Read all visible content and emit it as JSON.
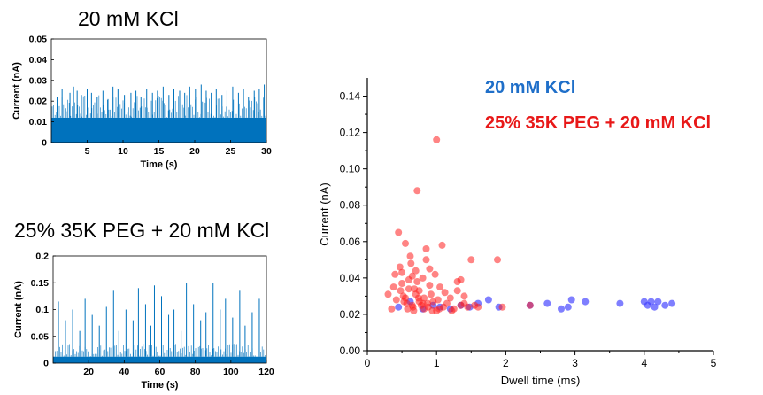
{
  "colors": {
    "trace_blue": "#0072bd",
    "scatter_blue": "#3b3bff",
    "scatter_red": "#ff1f1f",
    "legend_blue": "#1f6fc9",
    "legend_red": "#e81818"
  },
  "chart_data": [
    {
      "type": "line",
      "title": "20 mM KCl",
      "xlabel": "Time (s)",
      "ylabel": "Current (nA)",
      "xlim": [
        0,
        30
      ],
      "ylim": [
        0,
        0.05
      ],
      "xticks": [
        "5",
        "10",
        "15",
        "20",
        "25",
        "30"
      ],
      "yticks": [
        "0",
        "0.01",
        "0.02",
        "0.03",
        "0.04",
        "0.05"
      ],
      "baseline": 0.012,
      "spike_times": [
        0.8,
        1.5,
        2.6,
        3.1,
        3.6,
        4.2,
        5.0,
        5.6,
        6.4,
        7.2,
        7.9,
        8.6,
        9.3,
        10.2,
        11.1,
        11.8,
        12.5,
        13.3,
        14.1,
        14.8,
        15.6,
        16.4,
        17.1,
        17.9,
        18.6,
        19.3,
        20.1,
        20.9,
        21.6,
        22.3,
        23.0,
        23.8,
        24.5,
        25.3,
        26.1,
        26.8,
        27.5,
        28.3,
        29.0,
        29.7
      ],
      "spike_values": [
        0.022,
        0.026,
        0.024,
        0.027,
        0.025,
        0.023,
        0.026,
        0.024,
        0.022,
        0.025,
        0.021,
        0.027,
        0.026,
        0.023,
        0.024,
        0.025,
        0.022,
        0.026,
        0.024,
        0.025,
        0.027,
        0.023,
        0.026,
        0.025,
        0.024,
        0.027,
        0.026,
        0.028,
        0.025,
        0.024,
        0.026,
        0.023,
        0.025,
        0.027,
        0.024,
        0.026,
        0.022,
        0.025,
        0.026,
        0.028
      ]
    },
    {
      "type": "line",
      "title": "25% 35K PEG + 20 mM KCl",
      "xlabel": "Time (s)",
      "ylabel": "Current (nA)",
      "xlim": [
        0,
        120
      ],
      "ylim": [
        0,
        0.2
      ],
      "xticks": [
        "20",
        "40",
        "60",
        "80",
        "100",
        "120"
      ],
      "yticks": [
        "0",
        "0.05",
        "0.1",
        "0.15",
        "0.2"
      ],
      "baseline": 0.012,
      "spike_times": [
        3,
        7,
        11,
        15,
        18,
        22,
        26,
        30,
        34,
        37,
        41,
        45,
        48,
        52,
        55,
        57,
        61,
        65,
        68,
        72,
        75,
        79,
        83,
        86,
        90,
        94,
        97,
        101,
        105,
        108,
        112,
        116
      ],
      "spike_values": [
        0.115,
        0.08,
        0.1,
        0.06,
        0.12,
        0.09,
        0.07,
        0.105,
        0.135,
        0.06,
        0.1,
        0.08,
        0.14,
        0.11,
        0.07,
        0.145,
        0.125,
        0.09,
        0.1,
        0.06,
        0.15,
        0.11,
        0.08,
        0.095,
        0.15,
        0.1,
        0.12,
        0.085,
        0.135,
        0.07,
        0.095,
        0.12
      ]
    },
    {
      "type": "scatter",
      "title": "",
      "xlabel": "Dwell time (ms)",
      "ylabel": "Current (nA)",
      "xlim": [
        0,
        5
      ],
      "ylim": [
        0,
        0.15
      ],
      "xticks": [
        "0",
        "1",
        "2",
        "3",
        "4",
        "5"
      ],
      "yticks": [
        "0.00",
        "0.02",
        "0.04",
        "0.06",
        "0.08",
        "0.10",
        "0.12",
        "0.14"
      ],
      "series": [
        {
          "name": "20 mM KCl",
          "color": "#3b3bff",
          "x": [
            0.45,
            0.62,
            0.8,
            0.95,
            1.05,
            1.2,
            1.35,
            1.48,
            1.6,
            1.75,
            1.9,
            2.35,
            2.6,
            2.8,
            2.9,
            2.95,
            3.15,
            3.65,
            4.0,
            4.05,
            4.1,
            4.15,
            4.2,
            4.3,
            4.4
          ],
          "y": [
            0.024,
            0.027,
            0.023,
            0.025,
            0.024,
            0.023,
            0.025,
            0.024,
            0.026,
            0.028,
            0.024,
            0.025,
            0.026,
            0.023,
            0.024,
            0.028,
            0.027,
            0.026,
            0.027,
            0.025,
            0.027,
            0.024,
            0.027,
            0.025,
            0.026
          ]
        },
        {
          "name": "25% 35K PEG + 20 mM KCl",
          "color": "#ff1f1f",
          "x": [
            0.3,
            0.35,
            0.38,
            0.42,
            0.45,
            0.47,
            0.5,
            0.52,
            0.55,
            0.57,
            0.6,
            0.62,
            0.65,
            0.67,
            0.7,
            0.72,
            0.72,
            0.75,
            0.78,
            0.8,
            0.82,
            0.85,
            0.88,
            0.9,
            0.92,
            0.95,
            0.98,
            1.0,
            1.02,
            1.05,
            1.08,
            1.1,
            1.12,
            1.15,
            1.2,
            1.25,
            1.3,
            1.35,
            1.4,
            1.45,
            1.5,
            0.48,
            0.55,
            0.6,
            0.65,
            0.7,
            0.75,
            0.82,
            0.9,
            1.0,
            0.5,
            0.58,
            0.63,
            0.68,
            0.8,
            0.85,
            1.3,
            1.35,
            1.6,
            1.88,
            1.95,
            2.35,
            0.4,
            0.53,
            0.66,
            0.74,
            0.87,
            0.94,
            1.04,
            1.22,
            1.4,
            1.55
          ],
          "y": [
            0.031,
            0.023,
            0.035,
            0.028,
            0.065,
            0.046,
            0.043,
            0.03,
            0.059,
            0.026,
            0.034,
            0.052,
            0.041,
            0.022,
            0.044,
            0.038,
            0.088,
            0.033,
            0.025,
            0.04,
            0.029,
            0.05,
            0.024,
            0.036,
            0.031,
            0.027,
            0.042,
            0.116,
            0.028,
            0.035,
            0.058,
            0.024,
            0.032,
            0.026,
            0.029,
            0.023,
            0.038,
            0.025,
            0.03,
            0.024,
            0.05,
            0.033,
            0.029,
            0.039,
            0.025,
            0.031,
            0.027,
            0.023,
            0.045,
            0.022,
            0.037,
            0.023,
            0.048,
            0.034,
            0.026,
            0.056,
            0.033,
            0.039,
            0.024,
            0.05,
            0.024,
            0.025,
            0.042,
            0.027,
            0.024,
            0.029,
            0.026,
            0.022,
            0.023,
            0.022,
            0.026,
            0.025
          ]
        }
      ]
    }
  ]
}
